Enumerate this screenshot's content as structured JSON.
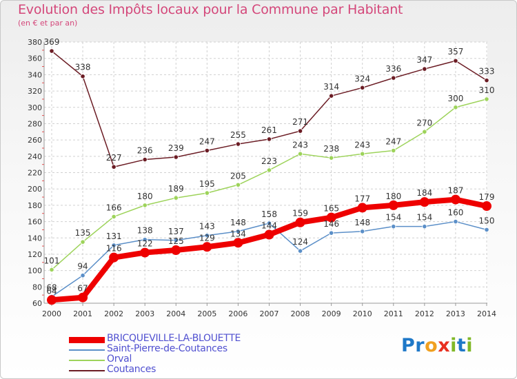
{
  "title": "Evolution des Impôts locaux pour la Commune par Habitant",
  "subtitle": "(en € et par an)",
  "brand": {
    "text": "Proxiti",
    "letters": [
      {
        "ch": "P",
        "color": "#1e78c8"
      },
      {
        "ch": "r",
        "color": "#1e78c8"
      },
      {
        "ch": "o",
        "color": "#f0a020"
      },
      {
        "ch": "x",
        "color": "#e83020"
      },
      {
        "ch": "i",
        "color": "#80b828"
      },
      {
        "ch": "t",
        "color": "#1e78c8"
      },
      {
        "ch": "i",
        "color": "#80b828"
      }
    ]
  },
  "chart_data": {
    "type": "line",
    "title": "Evolution des Impôts locaux pour la Commune par Habitant",
    "ylabel": "(en € et par an)",
    "xlabel": "",
    "x": [
      "2000",
      "2001",
      "2002",
      "2003",
      "2004",
      "2005",
      "2006",
      "2007",
      "2008",
      "2009",
      "2010",
      "2011",
      "2012",
      "2013",
      "2014"
    ],
    "ylim": [
      60,
      380
    ],
    "yticks": [
      60,
      80,
      100,
      120,
      140,
      160,
      180,
      200,
      220,
      240,
      260,
      280,
      300,
      320,
      340,
      360,
      380
    ],
    "grid": true,
    "legend_position": "bottom-left",
    "series": [
      {
        "name": "BRICQUEVILLE-LA-BLOUETTE",
        "color": "#ee0000",
        "legend_text_color": "#5050d0",
        "values": [
          64,
          67,
          116,
          122,
          125,
          129,
          134,
          144,
          159,
          165,
          177,
          180,
          184,
          187,
          179
        ]
      },
      {
        "name": "Saint-Pierre-de-Coutances",
        "color": "#5b8fc8",
        "legend_text_color": "#5050d0",
        "values": [
          68,
          94,
          131,
          138,
          137,
          143,
          148,
          158,
          124,
          146,
          148,
          154,
          154,
          160,
          150
        ]
      },
      {
        "name": "Orval",
        "color": "#9dd35a",
        "legend_text_color": "#5050d0",
        "values": [
          101,
          135,
          166,
          180,
          189,
          195,
          205,
          223,
          243,
          238,
          243,
          247,
          270,
          300,
          310
        ]
      },
      {
        "name": "Coutances",
        "color": "#6b1c24",
        "legend_text_color": "#5050d0",
        "values": [
          369,
          338,
          227,
          236,
          239,
          247,
          255,
          261,
          271,
          314,
          324,
          336,
          347,
          357,
          333
        ]
      }
    ]
  }
}
